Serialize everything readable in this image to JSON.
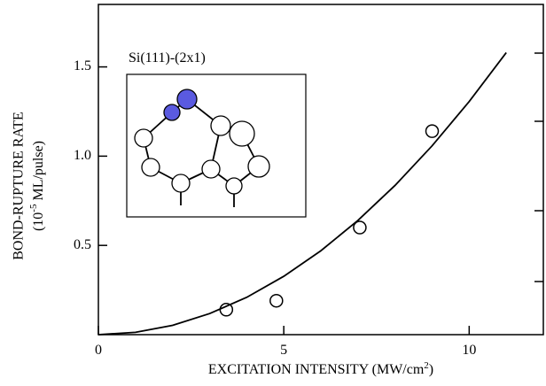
{
  "chart_data": {
    "type": "scatter",
    "ylabel": "BOND-RUPTURE RATE",
    "ylabel_unit": {
      "base": "(10",
      "sup": "-5",
      "rest": " ML/pulse)"
    },
    "xlabel": {
      "base": "EXCITATION INTENSITY  (MW/cm",
      "sup": "2",
      "rest": ")"
    },
    "inset_label": "Si(111)-(2x1)",
    "xlim": [
      0,
      12
    ],
    "ylim": [
      0,
      1.85
    ],
    "xticks": [
      0,
      5,
      10
    ],
    "yticks": [
      0.5,
      {
        "value": 1.0,
        "label": "1.0"
      },
      1.5
    ],
    "series": [
      {
        "style": "marker",
        "color": "#000000",
        "x": [
          3.45,
          4.8,
          7.05,
          9.0
        ],
        "values": [
          0.14,
          0.19,
          0.6,
          1.14
        ]
      },
      {
        "style": "line",
        "color": "#000000",
        "x": [
          0,
          1,
          2,
          3,
          4,
          5,
          6,
          7,
          8,
          9,
          10,
          11
        ],
        "values": [
          0,
          0.013,
          0.052,
          0.118,
          0.209,
          0.327,
          0.47,
          0.64,
          0.836,
          1.058,
          1.306,
          1.58
        ]
      }
    ]
  }
}
